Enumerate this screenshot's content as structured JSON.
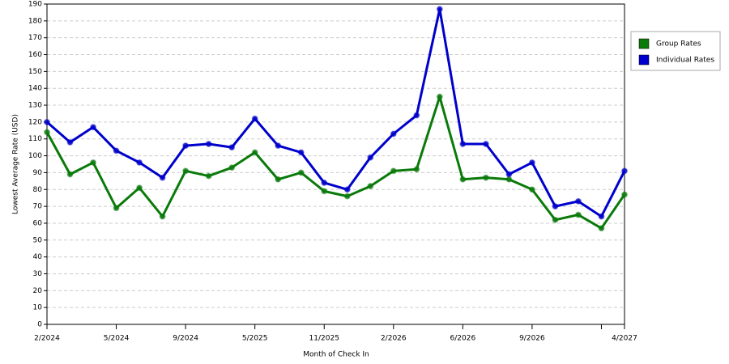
{
  "chart_data": {
    "type": "line",
    "x_label": "Month of Check In",
    "y_label": "Lowest Average Rate (USD)",
    "categories": [
      "2/2024",
      null,
      null,
      "5/2024",
      null,
      null,
      "9/2024",
      null,
      null,
      "5/2025",
      null,
      null,
      "11/2025",
      null,
      null,
      "2/2026",
      null,
      null,
      "6/2026",
      null,
      null,
      "9/2026",
      null,
      null,
      null,
      "4/2027"
    ],
    "series": [
      {
        "name": "Group Rates",
        "color": "#0a7a0a",
        "values": [
          114,
          89,
          96,
          69,
          81,
          64,
          91,
          88,
          93,
          102,
          86,
          90,
          79,
          76,
          82,
          91,
          92,
          135,
          86,
          87,
          86,
          80,
          62,
          65,
          57,
          77
        ]
      },
      {
        "name": "Individual Rates",
        "color": "#0000cc",
        "values": [
          120,
          108,
          117,
          103,
          96,
          87,
          106,
          107,
          105,
          122,
          106,
          102,
          84,
          80,
          99,
          113,
          124,
          187,
          107,
          107,
          89,
          96,
          70,
          73,
          64,
          91
        ]
      }
    ],
    "ylim": [
      0,
      190
    ],
    "yticks": [
      0,
      10,
      20,
      30,
      40,
      50,
      60,
      70,
      80,
      90,
      100,
      110,
      120,
      130,
      140,
      150,
      160,
      170,
      180,
      190
    ],
    "grid": true,
    "legend": "right"
  }
}
